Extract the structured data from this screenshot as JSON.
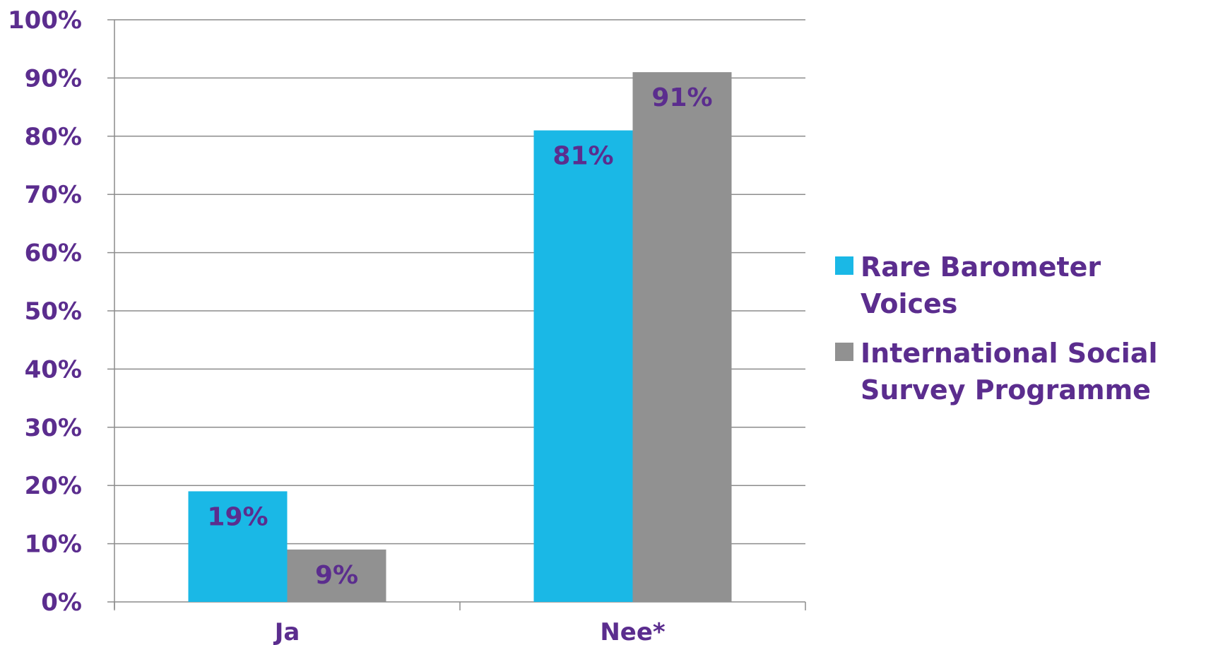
{
  "chart_data": {
    "type": "bar",
    "categories": [
      "Ja",
      "Nee*"
    ],
    "series": [
      {
        "name": "Rare Barometer Voices",
        "values": [
          19,
          81
        ],
        "color": "#1ab8e6"
      },
      {
        "name": "International Social Survey Programme",
        "values": [
          9,
          91
        ],
        "color": "#919191"
      }
    ],
    "data_labels": [
      [
        "19%",
        "81%"
      ],
      [
        "9%",
        "91%"
      ]
    ],
    "y_ticks": [
      "0%",
      "10%",
      "20%",
      "30%",
      "40%",
      "50%",
      "60%",
      "70%",
      "80%",
      "90%",
      "100%"
    ],
    "ylim": [
      0,
      100
    ],
    "grid": true,
    "legend_position": "right",
    "title": "",
    "xlabel": "",
    "ylabel": ""
  },
  "colors": {
    "text": "#5b2d8e",
    "grid": "#8c8c8c"
  }
}
